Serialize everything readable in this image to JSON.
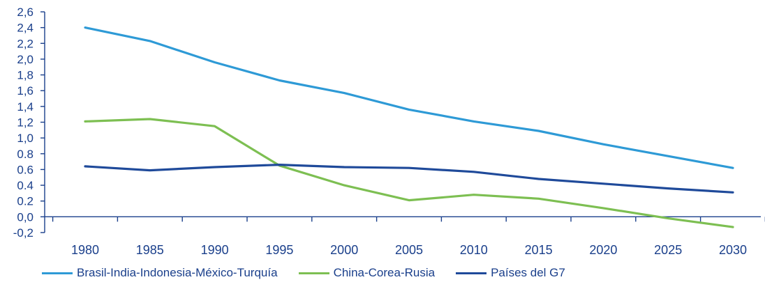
{
  "chart_data": {
    "type": "line",
    "title": "",
    "xlabel": "",
    "ylabel": "",
    "x": [
      1980,
      1985,
      1990,
      1995,
      2000,
      2005,
      2010,
      2015,
      2020,
      2025,
      2030
    ],
    "xtick_labels": [
      "1980",
      "1985",
      "1990",
      "1995",
      "2000",
      "2005",
      "2010",
      "2015",
      "2020",
      "2025",
      "2030"
    ],
    "ylim": [
      -0.2,
      2.6
    ],
    "yticks": [
      -0.2,
      0.0,
      0.2,
      0.4,
      0.6,
      0.8,
      1.0,
      1.2,
      1.4,
      1.6,
      1.8,
      2.0,
      2.2,
      2.4,
      2.6
    ],
    "ytick_labels": [
      "-0,2",
      "0,0",
      "0.2",
      "0.4",
      "0.6",
      "0.8",
      "1,0",
      "1,2",
      "1,4",
      "1,6",
      "1,8",
      "2,0",
      "2,2",
      "2,4",
      "2,6"
    ],
    "grid": false,
    "legend_position": "bottom",
    "series": [
      {
        "name": "Brasil-India-Indonesia-México-Turquía",
        "color": "#2e9ad6",
        "values": [
          2.4,
          2.23,
          1.96,
          1.73,
          1.57,
          1.36,
          1.21,
          1.09,
          0.92,
          0.77,
          0.62
        ]
      },
      {
        "name": "China-Corea-Rusia",
        "color": "#7dbf52",
        "values": [
          1.21,
          1.24,
          1.15,
          0.65,
          0.4,
          0.21,
          0.28,
          0.23,
          0.11,
          -0.02,
          -0.13
        ]
      },
      {
        "name": "Países del G7",
        "color": "#1f4a9a",
        "values": [
          0.64,
          0.59,
          0.63,
          0.66,
          0.63,
          0.62,
          0.57,
          0.48,
          0.42,
          0.36,
          0.31
        ]
      }
    ]
  }
}
